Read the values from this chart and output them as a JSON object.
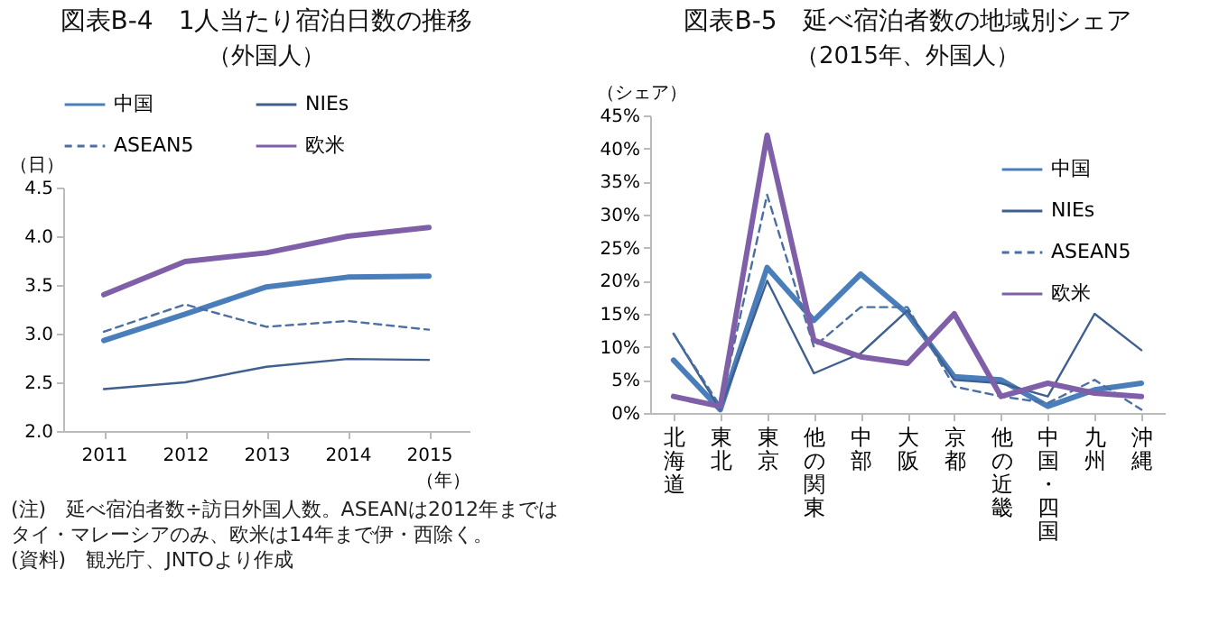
{
  "chart_data": [
    {
      "type": "line",
      "title": "図表B-4　1人当たり宿泊日数の推移",
      "subtitle": "（外国人）",
      "ylabel": "（日）",
      "xlabel": "（年）",
      "categories": [
        "2011",
        "2012",
        "2013",
        "2014",
        "2015"
      ],
      "series": [
        {
          "name": "中国",
          "color": "#4a7ebb",
          "values": [
            2.93,
            3.2,
            3.48,
            3.58,
            3.59
          ]
        },
        {
          "name": "NIEs",
          "color": "#3f5f8f",
          "values": [
            2.43,
            2.5,
            2.66,
            2.74,
            2.73
          ]
        },
        {
          "name": "ASEAN5",
          "color": "#4a6fa0",
          "line_style": "dashed",
          "values": [
            3.02,
            3.3,
            3.07,
            3.13,
            3.04
          ]
        },
        {
          "name": "欧米",
          "color": "#7e5fa8",
          "values": [
            3.4,
            3.74,
            3.83,
            4.0,
            4.09
          ]
        }
      ],
      "ylim": [
        2.0,
        4.5
      ],
      "yticks": [
        {
          "value": 2,
          "label": "2.0"
        },
        2.5,
        {
          "value": 3,
          "label": "3.0"
        },
        3.5,
        {
          "value": 4,
          "label": "4.0"
        },
        4.5
      ],
      "grid": false,
      "legend": "top",
      "annotations": [
        "(注)　延べ宿泊者数÷訪日外国人数。ASEANは2012年まではタイ・マレーシアのみ、欧米は14年まで伊・西除く。",
        "(資料)　観光庁、JNTOより作成"
      ]
    },
    {
      "type": "line",
      "title": "図表B-5　延べ宿泊者数の地域別シェア",
      "subtitle": "（2015年、外国人）",
      "ylabel": "（シェア）",
      "categories": [
        "北海道",
        "東北",
        "東京",
        "他の関東",
        "中部",
        "大阪",
        "京都",
        "他の近畿",
        "中国・四国",
        "九州",
        "沖縄"
      ],
      "series": [
        {
          "name": "中国",
          "color": "#4a7ebb",
          "values": [
            8,
            0.5,
            22,
            14,
            21,
            15,
            5.5,
            5,
            1,
            3.5,
            4.5
          ]
        },
        {
          "name": "NIEs",
          "color": "#3f5f8f",
          "values": [
            12,
            0.5,
            20,
            6,
            9,
            15.5,
            5,
            4.5,
            2.5,
            15,
            9.5
          ]
        },
        {
          "name": "ASEAN5",
          "color": "#4a6fa0",
          "line_style": "dashed",
          "values": [
            12,
            1,
            33,
            10,
            16,
            16,
            4,
            2.5,
            1.5,
            5,
            0.5
          ]
        },
        {
          "name": "欧米",
          "color": "#7e5fa8",
          "values": [
            2.5,
            1,
            42,
            11,
            8.5,
            7.5,
            15,
            2.5,
            4.5,
            3,
            2.5
          ]
        }
      ],
      "ylim": [
        0,
        45
      ],
      "yticks": [
        {
          "value": 0,
          "label": "0%"
        },
        {
          "value": 5,
          "label": "5%"
        },
        {
          "value": 10,
          "label": "10%"
        },
        {
          "value": 15,
          "label": "15%"
        },
        {
          "value": 20,
          "label": "20%"
        },
        {
          "value": 25,
          "label": "25%"
        },
        {
          "value": 30,
          "label": "30%"
        },
        {
          "value": 35,
          "label": "35%"
        },
        {
          "value": 40,
          "label": "40%"
        },
        {
          "value": 45,
          "label": "45%"
        }
      ],
      "grid": false,
      "legend": "top right"
    }
  ]
}
